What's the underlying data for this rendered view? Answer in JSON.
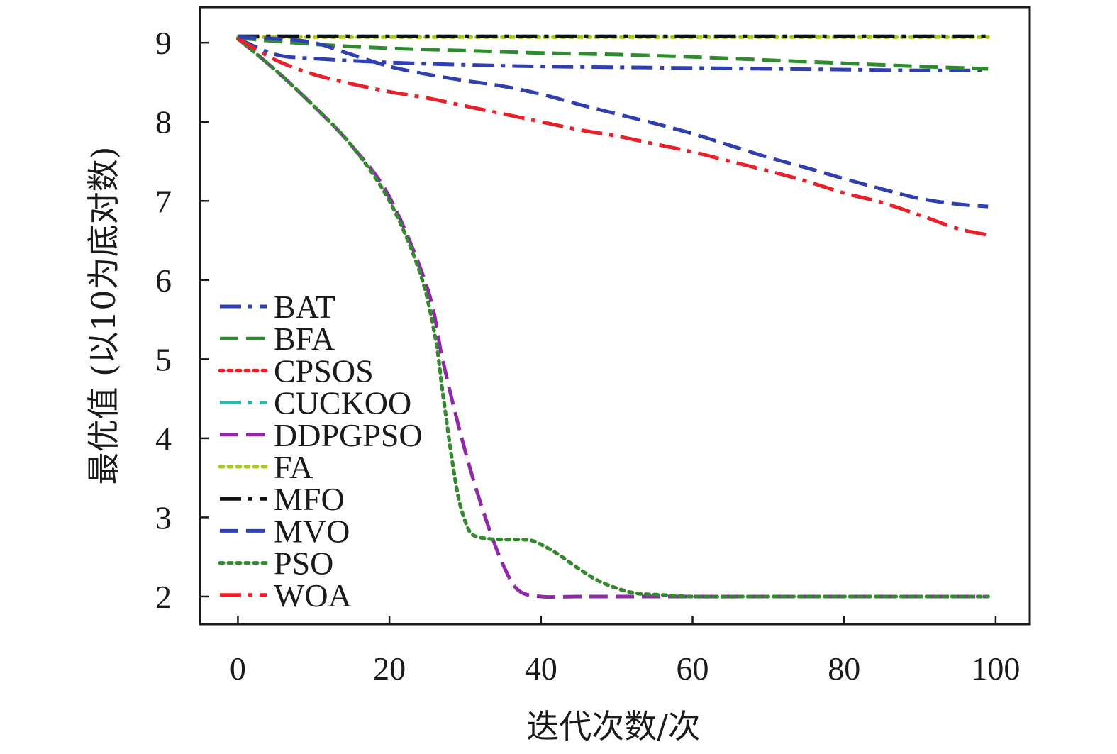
{
  "chart_data": {
    "type": "line",
    "title": "",
    "xlabel": "迭代次数/次",
    "ylabel": "最优值 (以10为底对数)",
    "xlim": [
      -5,
      104.5
    ],
    "ylim": [
      1.65,
      9.45
    ],
    "xticks": [
      0,
      20,
      40,
      60,
      80,
      100
    ],
    "yticks": [
      2,
      3,
      4,
      5,
      6,
      7,
      8,
      9
    ],
    "grid": false,
    "legend_position": "left",
    "series": [
      {
        "name": "BAT",
        "color": "#2f3fb0",
        "dash": "dashdot",
        "x": [
          0,
          5,
          10,
          20,
          30,
          40,
          50,
          60,
          70,
          80,
          90,
          99
        ],
        "y": [
          9.05,
          8.85,
          8.8,
          8.75,
          8.72,
          8.7,
          8.69,
          8.68,
          8.67,
          8.66,
          8.65,
          8.65
        ]
      },
      {
        "name": "BFA",
        "color": "#2e8b2e",
        "dash": "dashed",
        "x": [
          0,
          10,
          20,
          30,
          40,
          50,
          60,
          70,
          80,
          90,
          99
        ],
        "y": [
          9.06,
          8.98,
          8.93,
          8.9,
          8.87,
          8.85,
          8.82,
          8.78,
          8.74,
          8.7,
          8.67
        ]
      },
      {
        "name": "CPSOS",
        "color": "#e8202a",
        "dash": "dotted",
        "x": [
          0,
          5,
          10,
          15,
          20,
          24,
          26,
          27,
          28,
          29,
          30,
          31,
          33,
          35,
          37,
          39,
          42,
          45,
          48,
          52,
          56,
          60,
          70,
          80,
          90,
          99
        ],
        "y": [
          9.05,
          8.65,
          8.2,
          7.7,
          7.0,
          6.1,
          5.3,
          4.6,
          3.9,
          3.3,
          2.95,
          2.78,
          2.73,
          2.72,
          2.72,
          2.7,
          2.55,
          2.35,
          2.18,
          2.05,
          2.02,
          2.0,
          2.0,
          2.0,
          2.0,
          2.0
        ]
      },
      {
        "name": "CUCKOO",
        "color": "#2bb8b0",
        "dash": "dashdot",
        "x": [
          0,
          20,
          40,
          60,
          80,
          99
        ],
        "y": [
          9.08,
          9.08,
          9.08,
          9.08,
          9.08,
          9.08
        ]
      },
      {
        "name": "DDPGPSO",
        "color": "#8e2aa8",
        "dash": "dashed",
        "x": [
          0,
          5,
          10,
          15,
          20,
          25,
          27,
          29,
          31,
          33,
          35,
          37,
          40,
          45,
          50,
          60,
          70,
          80,
          90,
          99
        ],
        "y": [
          9.05,
          8.65,
          8.2,
          7.7,
          7.05,
          5.9,
          5.0,
          4.2,
          3.5,
          2.9,
          2.4,
          2.08,
          2.0,
          2.0,
          2.0,
          2.0,
          2.0,
          2.0,
          2.0,
          2.0
        ]
      },
      {
        "name": "FA",
        "color": "#a6c81e",
        "dash": "dotted",
        "x": [
          0,
          20,
          40,
          60,
          80,
          99
        ],
        "y": [
          9.07,
          9.07,
          9.07,
          9.07,
          9.07,
          9.07
        ]
      },
      {
        "name": "MFO",
        "color": "#111111",
        "dash": "dashdot",
        "x": [
          0,
          20,
          40,
          60,
          80,
          99
        ],
        "y": [
          9.08,
          9.08,
          9.08,
          9.08,
          9.08,
          9.08
        ]
      },
      {
        "name": "MVO",
        "color": "#2f3fb0",
        "dash": "dashed",
        "x": [
          0,
          5,
          10,
          15,
          20,
          25,
          30,
          35,
          40,
          45,
          50,
          55,
          60,
          65,
          70,
          75,
          80,
          85,
          90,
          95,
          99
        ],
        "y": [
          9.07,
          9.05,
          9.0,
          8.85,
          8.7,
          8.6,
          8.52,
          8.45,
          8.35,
          8.22,
          8.1,
          7.98,
          7.85,
          7.7,
          7.55,
          7.42,
          7.28,
          7.15,
          7.03,
          6.96,
          6.93
        ]
      },
      {
        "name": "PSO",
        "color": "#2e8b2e",
        "dash": "dotted",
        "x": [
          0,
          5,
          10,
          15,
          20,
          24,
          26,
          27,
          28,
          29,
          30,
          31,
          33,
          35,
          37,
          39,
          42,
          45,
          48,
          52,
          56,
          60,
          70,
          80,
          90,
          99
        ],
        "y": [
          9.05,
          8.65,
          8.2,
          7.7,
          7.0,
          6.1,
          5.3,
          4.6,
          3.9,
          3.3,
          2.95,
          2.78,
          2.73,
          2.72,
          2.72,
          2.7,
          2.55,
          2.35,
          2.18,
          2.05,
          2.02,
          2.0,
          2.0,
          2.0,
          2.0,
          2.0
        ]
      },
      {
        "name": "WOA",
        "color": "#e8202a",
        "dash": "dashdot",
        "x": [
          0,
          5,
          10,
          15,
          20,
          25,
          30,
          35,
          40,
          45,
          50,
          55,
          60,
          65,
          70,
          75,
          80,
          85,
          90,
          95,
          99
        ],
        "y": [
          9.05,
          8.78,
          8.6,
          8.48,
          8.38,
          8.3,
          8.2,
          8.1,
          8.0,
          7.9,
          7.82,
          7.72,
          7.62,
          7.5,
          7.38,
          7.25,
          7.1,
          6.98,
          6.82,
          6.65,
          6.57
        ]
      }
    ]
  }
}
